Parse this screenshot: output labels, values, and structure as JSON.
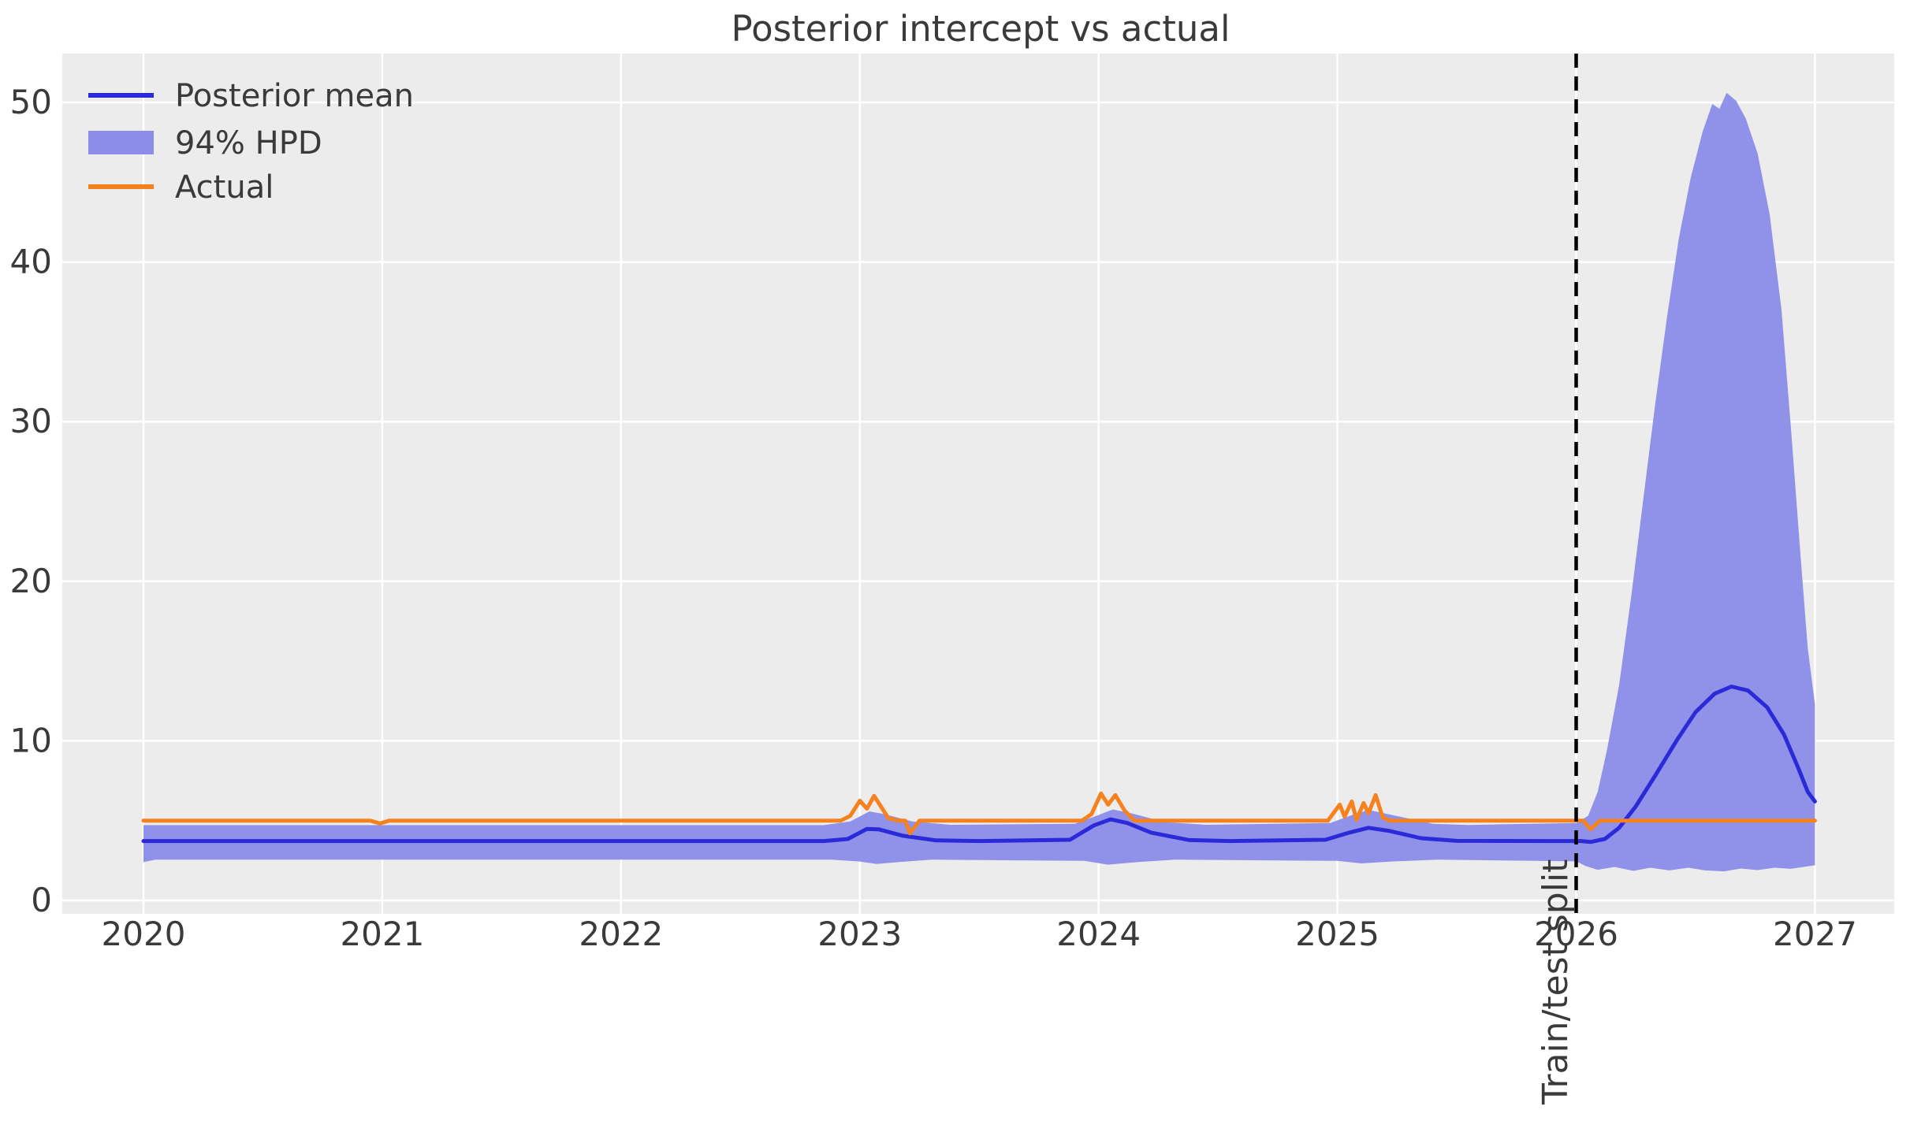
{
  "chart_data": {
    "type": "line",
    "title": "Posterior intercept vs actual",
    "x_ticks": [
      2020,
      2021,
      2022,
      2023,
      2024,
      2025,
      2026,
      2027
    ],
    "y_ticks": [
      0,
      10,
      20,
      30,
      40,
      50
    ],
    "xlim": [
      2019.66,
      2027.332
    ],
    "ylim": [
      -0.839,
      53.06
    ],
    "grid": true,
    "legend_position": "upper-left",
    "colors": {
      "plot_background": "#ececec",
      "gridline": "#ffffff",
      "text": "#3a3a3a",
      "posterior_mean": "#2a2ad8",
      "hpd_band": "#8b8de9",
      "actual": "#f5821f",
      "split_line": "#000000"
    },
    "vline": {
      "x": 2026.0,
      "style": "dashed",
      "label": "Train/test split"
    },
    "legend": [
      {
        "label": "Posterior mean",
        "swatch": "line",
        "color": "#2a2ad8"
      },
      {
        "label": "94% HPD",
        "swatch": "patch",
        "color": "#8b8de9"
      },
      {
        "label": "Actual",
        "swatch": "line",
        "color": "#f5821f"
      }
    ],
    "series": [
      {
        "name": "Posterior mean",
        "kind": "line",
        "color": "#2a2ad8",
        "width": 5,
        "points": [
          [
            2020.0,
            3.72
          ],
          [
            2022.85,
            3.72
          ],
          [
            2022.95,
            3.85
          ],
          [
            2023.03,
            4.48
          ],
          [
            2023.08,
            4.45
          ],
          [
            2023.18,
            4.05
          ],
          [
            2023.32,
            3.76
          ],
          [
            2023.5,
            3.72
          ],
          [
            2023.88,
            3.8
          ],
          [
            2023.98,
            4.7
          ],
          [
            2024.05,
            5.08
          ],
          [
            2024.12,
            4.85
          ],
          [
            2024.22,
            4.25
          ],
          [
            2024.38,
            3.78
          ],
          [
            2024.55,
            3.72
          ],
          [
            2024.95,
            3.8
          ],
          [
            2025.05,
            4.25
          ],
          [
            2025.13,
            4.55
          ],
          [
            2025.22,
            4.35
          ],
          [
            2025.35,
            3.9
          ],
          [
            2025.5,
            3.73
          ],
          [
            2025.9,
            3.72
          ],
          [
            2026.02,
            3.72
          ],
          [
            2026.06,
            3.66
          ],
          [
            2026.12,
            3.85
          ],
          [
            2026.18,
            4.55
          ],
          [
            2026.25,
            5.9
          ],
          [
            2026.33,
            7.8
          ],
          [
            2026.42,
            10.0
          ],
          [
            2026.5,
            11.8
          ],
          [
            2026.58,
            12.95
          ],
          [
            2026.65,
            13.4
          ],
          [
            2026.72,
            13.15
          ],
          [
            2026.8,
            12.1
          ],
          [
            2026.87,
            10.4
          ],
          [
            2026.93,
            8.3
          ],
          [
            2026.97,
            6.8
          ],
          [
            2027.0,
            6.2
          ]
        ]
      },
      {
        "name": "94% HPD",
        "kind": "band",
        "color": "#8b8de9",
        "upper": [
          [
            2020.0,
            4.72
          ],
          [
            2022.85,
            4.72
          ],
          [
            2022.96,
            4.95
          ],
          [
            2023.04,
            5.58
          ],
          [
            2023.1,
            5.42
          ],
          [
            2023.22,
            4.95
          ],
          [
            2023.38,
            4.74
          ],
          [
            2023.9,
            4.8
          ],
          [
            2024.0,
            5.35
          ],
          [
            2024.06,
            5.7
          ],
          [
            2024.14,
            5.45
          ],
          [
            2024.28,
            4.9
          ],
          [
            2024.45,
            4.74
          ],
          [
            2024.97,
            4.85
          ],
          [
            2025.07,
            5.4
          ],
          [
            2025.13,
            5.67
          ],
          [
            2025.23,
            5.35
          ],
          [
            2025.4,
            4.8
          ],
          [
            2025.55,
            4.73
          ],
          [
            2026.0,
            4.85
          ],
          [
            2026.05,
            5.3
          ],
          [
            2026.09,
            6.8
          ],
          [
            2026.13,
            9.5
          ],
          [
            2026.18,
            13.5
          ],
          [
            2026.23,
            19.0
          ],
          [
            2026.28,
            25.0
          ],
          [
            2026.33,
            31.0
          ],
          [
            2026.38,
            36.5
          ],
          [
            2026.43,
            41.5
          ],
          [
            2026.48,
            45.3
          ],
          [
            2026.53,
            48.2
          ],
          [
            2026.57,
            49.9
          ],
          [
            2026.6,
            49.6
          ],
          [
            2026.63,
            50.6
          ],
          [
            2026.67,
            50.1
          ],
          [
            2026.71,
            49.0
          ],
          [
            2026.76,
            46.8
          ],
          [
            2026.81,
            43.0
          ],
          [
            2026.86,
            37.0
          ],
          [
            2026.9,
            29.5
          ],
          [
            2026.94,
            21.5
          ],
          [
            2026.97,
            15.8
          ],
          [
            2027.0,
            12.3
          ]
        ],
        "lower": [
          [
            2020.0,
            2.4
          ],
          [
            2020.05,
            2.55
          ],
          [
            2022.88,
            2.55
          ],
          [
            2023.0,
            2.44
          ],
          [
            2023.07,
            2.28
          ],
          [
            2023.16,
            2.4
          ],
          [
            2023.3,
            2.55
          ],
          [
            2023.94,
            2.48
          ],
          [
            2024.04,
            2.24
          ],
          [
            2024.16,
            2.4
          ],
          [
            2024.32,
            2.55
          ],
          [
            2025.0,
            2.48
          ],
          [
            2025.1,
            2.32
          ],
          [
            2025.24,
            2.45
          ],
          [
            2025.42,
            2.55
          ],
          [
            2026.0,
            2.45
          ],
          [
            2026.04,
            2.15
          ],
          [
            2026.09,
            1.92
          ],
          [
            2026.16,
            2.1
          ],
          [
            2026.24,
            1.85
          ],
          [
            2026.31,
            2.05
          ],
          [
            2026.39,
            1.88
          ],
          [
            2026.47,
            2.05
          ],
          [
            2026.54,
            1.88
          ],
          [
            2026.62,
            1.82
          ],
          [
            2026.69,
            2.0
          ],
          [
            2026.76,
            1.9
          ],
          [
            2026.83,
            2.05
          ],
          [
            2026.9,
            1.98
          ],
          [
            2026.96,
            2.12
          ],
          [
            2027.0,
            2.2
          ]
        ]
      },
      {
        "name": "Actual",
        "kind": "line",
        "color": "#f5821f",
        "width": 5,
        "points": [
          [
            2020.0,
            5.0
          ],
          [
            2020.95,
            5.0
          ],
          [
            2020.99,
            4.82
          ],
          [
            2021.03,
            5.0
          ],
          [
            2022.92,
            5.0
          ],
          [
            2022.96,
            5.3
          ],
          [
            2023.0,
            6.25
          ],
          [
            2023.03,
            5.75
          ],
          [
            2023.06,
            6.55
          ],
          [
            2023.09,
            5.85
          ],
          [
            2023.12,
            5.15
          ],
          [
            2023.16,
            5.0
          ],
          [
            2023.19,
            5.0
          ],
          [
            2023.21,
            4.2
          ],
          [
            2023.25,
            5.0
          ],
          [
            2023.93,
            5.0
          ],
          [
            2023.97,
            5.4
          ],
          [
            2024.01,
            6.7
          ],
          [
            2024.04,
            6.0
          ],
          [
            2024.07,
            6.6
          ],
          [
            2024.11,
            5.6
          ],
          [
            2024.15,
            5.0
          ],
          [
            2024.96,
            5.0
          ],
          [
            2024.99,
            5.6
          ],
          [
            2025.01,
            6.0
          ],
          [
            2025.03,
            5.25
          ],
          [
            2025.06,
            6.2
          ],
          [
            2025.08,
            5.05
          ],
          [
            2025.11,
            6.1
          ],
          [
            2025.13,
            5.45
          ],
          [
            2025.16,
            6.6
          ],
          [
            2025.19,
            5.2
          ],
          [
            2025.22,
            5.0
          ],
          [
            2026.03,
            5.0
          ],
          [
            2026.06,
            4.45
          ],
          [
            2026.1,
            5.0
          ],
          [
            2027.0,
            5.0
          ]
        ]
      }
    ]
  }
}
